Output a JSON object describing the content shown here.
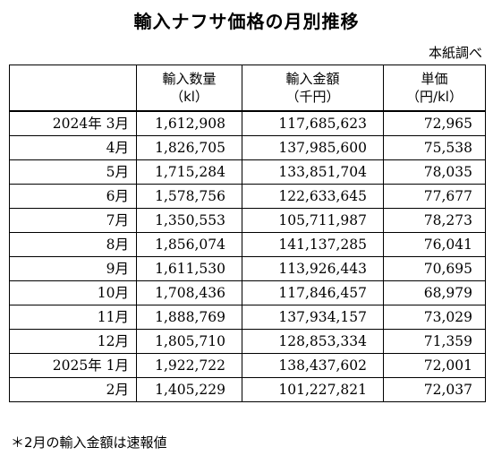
{
  "title": "輸入ナフサ価格の月別推移",
  "source": "本紙調べ",
  "headers": [
    {
      "line1": "",
      "line2": ""
    },
    {
      "line1": "輸入数量",
      "line2": "（kl）"
    },
    {
      "line1": "輸入金額",
      "line2": "（千円）"
    },
    {
      "line1": "単価",
      "line2": "（円/kl）"
    }
  ],
  "rows": [
    {
      "period": "2024年 3月",
      "volume": "1,612,908",
      "amount": "117,685,623",
      "price": "72,965"
    },
    {
      "period": "4月",
      "volume": "1,826,705",
      "amount": "137,985,600",
      "price": "75,538"
    },
    {
      "period": "5月",
      "volume": "1,715,284",
      "amount": "133,851,704",
      "price": "78,035"
    },
    {
      "period": "6月",
      "volume": "1,578,756",
      "amount": "122,633,645",
      "price": "77,677"
    },
    {
      "period": "7月",
      "volume": "1,350,553",
      "amount": "105,711,987",
      "price": "78,273"
    },
    {
      "period": "8月",
      "volume": "1,856,074",
      "amount": "141,137,285",
      "price": "76,041"
    },
    {
      "period": "9月",
      "volume": "1,611,530",
      "amount": "113,926,443",
      "price": "70,695"
    },
    {
      "period": "10月",
      "volume": "1,708,436",
      "amount": "117,846,457",
      "price": "68,979"
    },
    {
      "period": "11月",
      "volume": "1,888,769",
      "amount": "137,934,157",
      "price": "73,029"
    },
    {
      "period": "12月",
      "volume": "1,805,710",
      "amount": "128,853,334",
      "price": "71,359"
    },
    {
      "period": "2025年 1月",
      "volume": "1,922,722",
      "amount": "138,437,602",
      "price": "72,001"
    },
    {
      "period": "2月",
      "volume": "1,405,229",
      "amount": "101,227,821",
      "price": "72,037"
    }
  ],
  "note": "＊2月の輸入金額は速報値"
}
